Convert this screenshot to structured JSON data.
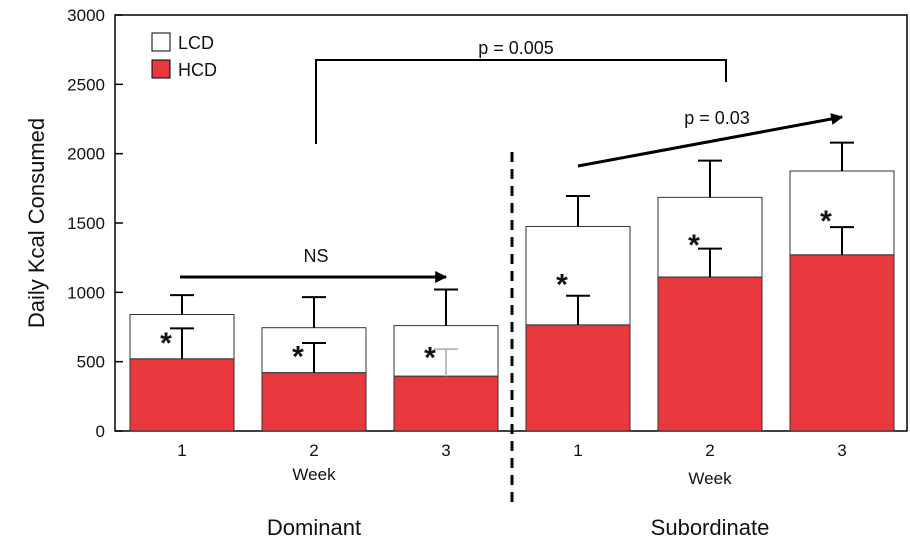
{
  "chart_data": {
    "type": "bar",
    "stacked": true,
    "ylabel": "Daily Kcal Consumed",
    "ylim": [
      0,
      3000
    ],
    "yticks": [
      0,
      500,
      1000,
      1500,
      2000,
      2500,
      3000
    ],
    "xlabel": "Week",
    "groups": [
      {
        "name": "Dominant",
        "weeks": [
          "1",
          "2",
          "3"
        ]
      },
      {
        "name": "Subordinate",
        "weeks": [
          "1",
          "2",
          "3"
        ]
      }
    ],
    "series": [
      {
        "name": "HCD",
        "color": "#e8383d",
        "values": [
          520,
          420,
          395,
          765,
          1110,
          1270
        ],
        "errors": [
          220,
          215,
          195,
          210,
          205,
          200
        ]
      },
      {
        "name": "LCD",
        "color": "#ffffff",
        "values": [
          320,
          325,
          365,
          710,
          575,
          605
        ],
        "errors": [
          140,
          220,
          260,
          220,
          265,
          205
        ]
      }
    ],
    "significance_marker": "*",
    "annotations": [
      {
        "text": "NS",
        "from_bar": 0,
        "to_bar": 2,
        "style": "arrow"
      },
      {
        "text": "p = 0.03",
        "from_bar": 3,
        "to_bar": 5,
        "style": "arrow"
      },
      {
        "text": "p = 0.005",
        "from_group": "Dominant",
        "to_group": "Subordinate",
        "style": "bracket"
      }
    ],
    "legend_position": "top-left",
    "grid": false,
    "group_divider": "dashed"
  }
}
